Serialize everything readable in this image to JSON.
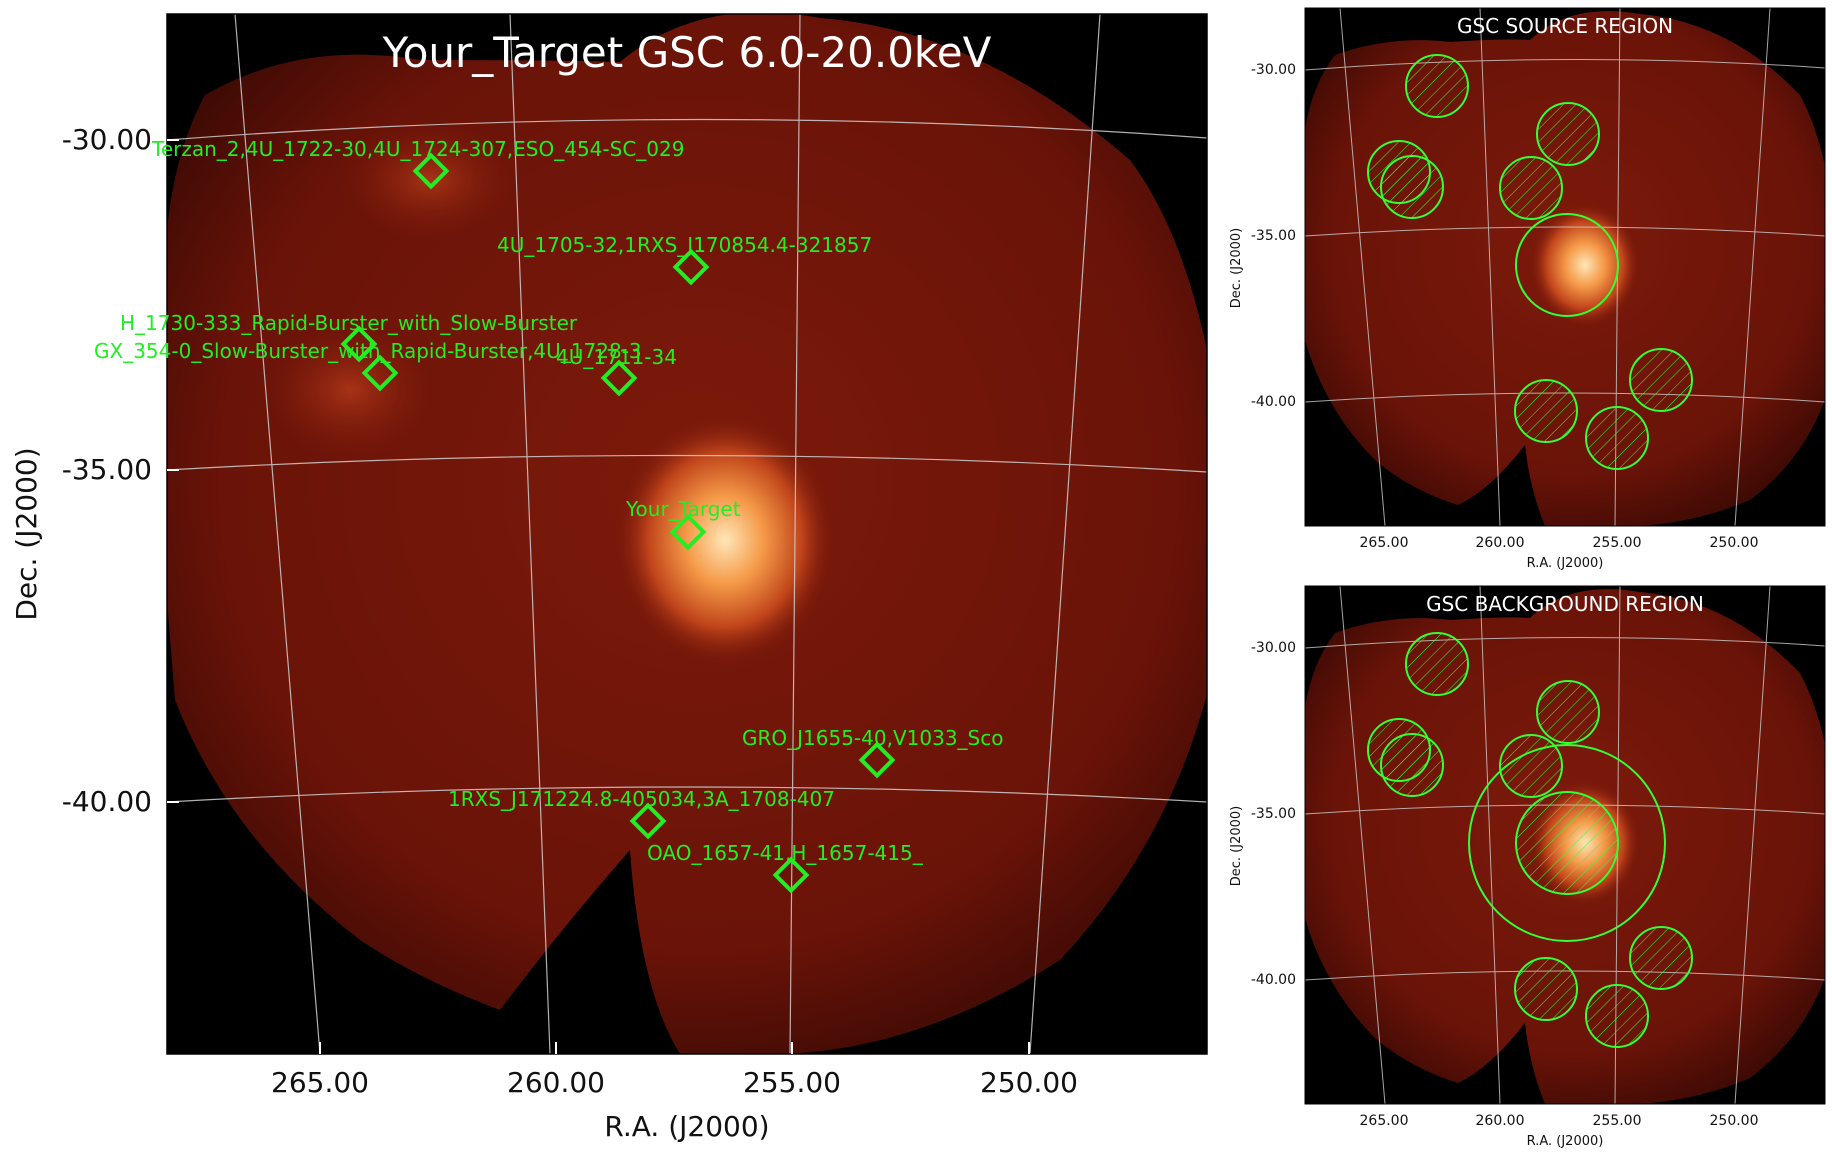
{
  "main_panel": {
    "title": "Your_Target GSC 6.0-20.0keV",
    "xlabel": "R.A. (J2000)",
    "ylabel": "Dec. (J2000)",
    "x_ticks": [
      "265.00",
      "260.00",
      "255.00",
      "250.00"
    ],
    "y_ticks": [
      "-30.00",
      "-35.00",
      "-40.00"
    ],
    "sources": [
      {
        "label": "Terzan_2,4U_1722-30,4U_1724-307,ESO_454-SC_029"
      },
      {
        "label": "4U_1705-32,1RXS_J170854.4-321857"
      },
      {
        "label": "H_1730-333_Rapid-Burster_with_Slow-Burster"
      },
      {
        "label": "GX_354-0_Slow-Burster_with_Rapid-Burster,4U_1728-3"
      },
      {
        "label": "4U_1711-34"
      },
      {
        "label": "Your_Target"
      },
      {
        "label": "GRO_J1655-40,V1033_Sco"
      },
      {
        "label": "1RXS_J171224.8-405034,3A_1708-407"
      },
      {
        "label": "OAO_1657-41,H_1657-415_"
      }
    ]
  },
  "source_panel": {
    "title": "GSC SOURCE REGION",
    "xlabel": "R.A. (J2000)",
    "ylabel": "Dec. (J2000)",
    "x_ticks": [
      "265.00",
      "260.00",
      "255.00",
      "250.00"
    ],
    "y_ticks": [
      "-30.00",
      "-35.00",
      "-40.00"
    ]
  },
  "background_panel": {
    "title": "GSC BACKGROUND REGION",
    "xlabel": "R.A. (J2000)",
    "ylabel": "Dec. (J2000)",
    "x_ticks": [
      "265.00",
      "260.00",
      "255.00",
      "250.00"
    ],
    "y_ticks": [
      "-30.00",
      "-35.00",
      "-40.00"
    ]
  },
  "colors": {
    "sky_background": "#000000",
    "map_field": "#6e1408",
    "source_glow": "#ffd9a0",
    "region_green": "#33ff33",
    "grid": "#cfcfcf"
  }
}
